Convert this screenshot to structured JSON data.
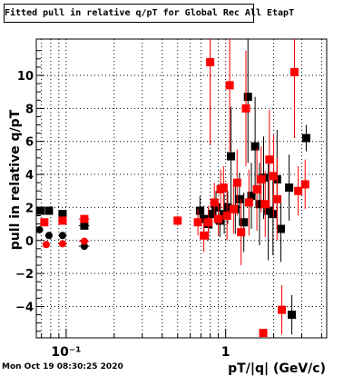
{
  "chart_data": {
    "type": "scatter",
    "title": "Fitted pull in relative q/pT for Global Rec All EtapT",
    "xlabel": "pT/|q| (GeV/c)",
    "ylabel": "pull in relative q/pT",
    "xscale": "log",
    "xlim": [
      0.065,
      4.3
    ],
    "ylim": [
      -5.9,
      12.2
    ],
    "grid": true,
    "x_tick_labels": [
      "10⁻¹",
      "1"
    ],
    "y_tick_labels": [
      "−4",
      "−2",
      "0",
      "2",
      "4",
      "6",
      "8",
      "10"
    ],
    "series": [
      {
        "color": "#000000",
        "points": [
          {
            "x": 0.069,
            "y": 1.8,
            "xerr": 0.004,
            "yerr": 0.1
          },
          {
            "x": 0.078,
            "y": 1.8,
            "xerr": 0.004,
            "yerr": 0.1
          },
          {
            "x": 0.095,
            "y": 1.6,
            "xerr": 0.006,
            "yerr": 0.1
          },
          {
            "x": 0.13,
            "y": 0.9,
            "xerr": 0.01,
            "yerr": 0.15
          },
          {
            "x": 0.69,
            "y": 1.8,
            "xerr": 0.02,
            "yerr": 0.9
          },
          {
            "x": 0.73,
            "y": 1.3,
            "xerr": 0.02,
            "yerr": 0.8
          },
          {
            "x": 0.78,
            "y": 1.0,
            "xerr": 0.02,
            "yerr": 1.0
          },
          {
            "x": 0.82,
            "y": 1.6,
            "xerr": 0.02,
            "yerr": 0.9
          },
          {
            "x": 0.87,
            "y": 2.0,
            "xerr": 0.02,
            "yerr": 1.0
          },
          {
            "x": 0.92,
            "y": 1.2,
            "xerr": 0.02,
            "yerr": 1.0
          },
          {
            "x": 0.98,
            "y": 1.6,
            "xerr": 0.02,
            "yerr": 1.2
          },
          {
            "x": 1.03,
            "y": 2.0,
            "xerr": 0.03,
            "yerr": 1.0
          },
          {
            "x": 1.08,
            "y": 5.1,
            "xerr": 0.03,
            "yerr": 3.0
          },
          {
            "x": 1.15,
            "y": 1.9,
            "xerr": 0.03,
            "yerr": 1.5
          },
          {
            "x": 1.22,
            "y": 2.5,
            "xerr": 0.03,
            "yerr": 1.6
          },
          {
            "x": 1.3,
            "y": 1.1,
            "xerr": 0.03,
            "yerr": 1.8
          },
          {
            "x": 1.38,
            "y": 8.7,
            "xerr": 0.03,
            "yerr": 4.0
          },
          {
            "x": 1.45,
            "y": 2.7,
            "xerr": 0.04,
            "yerr": 2.0
          },
          {
            "x": 1.53,
            "y": 5.7,
            "xerr": 0.04,
            "yerr": 3.0
          },
          {
            "x": 1.63,
            "y": 2.2,
            "xerr": 0.04,
            "yerr": 2.5
          },
          {
            "x": 1.73,
            "y": 3.8,
            "xerr": 0.05,
            "yerr": 2.5
          },
          {
            "x": 1.85,
            "y": 1.8,
            "xerr": 0.05,
            "yerr": 3.0
          },
          {
            "x": 1.98,
            "y": 1.6,
            "xerr": 0.05,
            "yerr": 2.5
          },
          {
            "x": 2.1,
            "y": 3.7,
            "xerr": 0.06,
            "yerr": 3.0
          },
          {
            "x": 2.22,
            "y": 0.7,
            "xerr": 0.06,
            "yerr": 2.0
          },
          {
            "x": 2.5,
            "y": 3.2,
            "xerr": 0.08,
            "yerr": 2.0
          },
          {
            "x": 2.6,
            "y": -4.5,
            "xerr": 0.08,
            "yerr": 1.2
          },
          {
            "x": 3.2,
            "y": 6.2,
            "xerr": 0.1,
            "yerr": 0.8
          }
        ]
      },
      {
        "color": "#ff0000",
        "points": [
          {
            "x": 0.073,
            "y": 1.1,
            "xerr": 0.004,
            "yerr": 0.1
          },
          {
            "x": 0.095,
            "y": 1.2,
            "xerr": 0.006,
            "yerr": 0.1
          },
          {
            "x": 0.13,
            "y": 1.3,
            "xerr": 0.01,
            "yerr": 0.15
          },
          {
            "x": 0.5,
            "y": 1.2,
            "xerr": 0.02,
            "yerr": 0.3
          },
          {
            "x": 0.67,
            "y": 1.1,
            "xerr": 0.02,
            "yerr": 0.8
          },
          {
            "x": 0.73,
            "y": 0.3,
            "xerr": 0.02,
            "yerr": 1.0
          },
          {
            "x": 0.78,
            "y": 1.1,
            "xerr": 0.02,
            "yerr": 1.0
          },
          {
            "x": 0.8,
            "y": 10.8,
            "xerr": 0.02,
            "yerr": 5.0
          },
          {
            "x": 0.85,
            "y": 2.3,
            "xerr": 0.02,
            "yerr": 1.2
          },
          {
            "x": 0.9,
            "y": 1.3,
            "xerr": 0.02,
            "yerr": 1.0
          },
          {
            "x": 0.93,
            "y": 3.1,
            "xerr": 0.02,
            "yerr": 1.2
          },
          {
            "x": 0.97,
            "y": 3.2,
            "xerr": 0.02,
            "yerr": 1.3
          },
          {
            "x": 1.02,
            "y": 1.5,
            "xerr": 0.03,
            "yerr": 1.5
          },
          {
            "x": 1.06,
            "y": 9.4,
            "xerr": 0.03,
            "yerr": 4.0
          },
          {
            "x": 1.12,
            "y": 1.9,
            "xerr": 0.03,
            "yerr": 1.5
          },
          {
            "x": 1.18,
            "y": 3.5,
            "xerr": 0.03,
            "yerr": 2.0
          },
          {
            "x": 1.25,
            "y": 0.5,
            "xerr": 0.03,
            "yerr": 2.0
          },
          {
            "x": 1.34,
            "y": 8.0,
            "xerr": 0.03,
            "yerr": 3.5
          },
          {
            "x": 1.4,
            "y": 2.3,
            "xerr": 0.04,
            "yerr": 2.0
          },
          {
            "x": 1.57,
            "y": 3.1,
            "xerr": 0.04,
            "yerr": 2.5
          },
          {
            "x": 1.67,
            "y": 3.7,
            "xerr": 0.04,
            "yerr": 2.0
          },
          {
            "x": 1.77,
            "y": 2.2,
            "xerr": 0.05,
            "yerr": 2.0
          },
          {
            "x": 1.88,
            "y": 4.9,
            "xerr": 0.05,
            "yerr": 3.0
          },
          {
            "x": 2.0,
            "y": 3.9,
            "xerr": 0.05,
            "yerr": 2.5
          },
          {
            "x": 2.1,
            "y": 2.5,
            "xerr": 0.06,
            "yerr": 2.5
          },
          {
            "x": 1.72,
            "y": -5.6,
            "xerr": 0.05,
            "yerr": 0.2
          },
          {
            "x": 2.25,
            "y": -4.2,
            "xerr": 0.06,
            "yerr": 1.5
          },
          {
            "x": 2.7,
            "y": 10.2,
            "xerr": 0.08,
            "yerr": 4.0
          },
          {
            "x": 2.85,
            "y": 3.0,
            "xerr": 0.08,
            "yerr": 1.5
          },
          {
            "x": 3.15,
            "y": 3.4,
            "xerr": 0.1,
            "yerr": 1.5
          }
        ]
      },
      {
        "color": "#000000",
        "marker": "circle",
        "points": [
          {
            "x": 0.068,
            "y": 0.65,
            "xerr": 0.004,
            "yerr": 0.1
          },
          {
            "x": 0.078,
            "y": 0.3,
            "xerr": 0.004,
            "yerr": 0.1
          },
          {
            "x": 0.095,
            "y": 0.3,
            "xerr": 0.006,
            "yerr": 0.1
          },
          {
            "x": 0.13,
            "y": -0.35,
            "xerr": 0.01,
            "yerr": 0.15
          }
        ]
      },
      {
        "color": "#ff0000",
        "marker": "circle",
        "points": [
          {
            "x": 0.075,
            "y": -0.25,
            "xerr": 0.004,
            "yerr": 0.1
          },
          {
            "x": 0.095,
            "y": -0.2,
            "xerr": 0.006,
            "yerr": 0.1
          },
          {
            "x": 0.13,
            "y": -0.05,
            "xerr": 0.01,
            "yerr": 0.15
          }
        ]
      }
    ]
  },
  "footer": {
    "timestamp": "Mon Oct 19 08:30:25 2020"
  }
}
